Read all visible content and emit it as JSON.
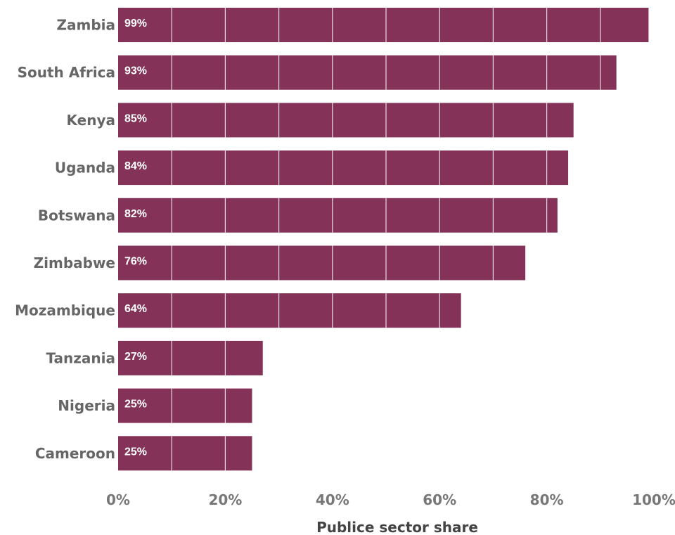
{
  "chart_data": {
    "type": "bar",
    "orientation": "horizontal",
    "categories": [
      "Zambia",
      "South Africa",
      "Kenya",
      "Uganda",
      "Botswana",
      "Zimbabwe",
      "Mozambique",
      "Tanzania",
      "Nigeria",
      "Cameroon"
    ],
    "values": [
      99,
      93,
      85,
      84,
      82,
      76,
      64,
      27,
      25,
      25
    ],
    "data_labels": [
      "99%",
      "93%",
      "85%",
      "84%",
      "82%",
      "76%",
      "64%",
      "27%",
      "25%",
      "25%"
    ],
    "xlabel": "Publice sector share",
    "xlim": [
      0,
      100
    ],
    "x_ticks": [
      0,
      20,
      40,
      60,
      80,
      100
    ],
    "x_tick_labels": [
      "0%",
      "20%",
      "40%",
      "60%",
      "80%",
      "100%"
    ],
    "grid": true,
    "bar_color": "#843257",
    "grid_color": "#e8dde2"
  }
}
